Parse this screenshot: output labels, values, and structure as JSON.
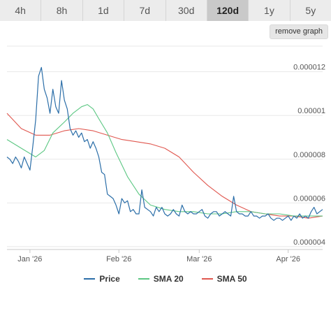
{
  "tabs": [
    {
      "label": "4h",
      "active": false
    },
    {
      "label": "8h",
      "active": false
    },
    {
      "label": "1d",
      "active": false
    },
    {
      "label": "7d",
      "active": false
    },
    {
      "label": "30d",
      "active": false
    },
    {
      "label": "120d",
      "active": true
    },
    {
      "label": "1y",
      "active": false
    },
    {
      "label": "5y",
      "active": false
    }
  ],
  "toolbar": {
    "remove_graph_label": "remove graph"
  },
  "colors": {
    "price": "#2b6ea8",
    "sma20": "#5cc783",
    "sma50": "#e0574f",
    "grid": "#e8e8e8"
  },
  "chart_data": {
    "type": "line",
    "title": "",
    "xlabel": "",
    "ylabel": "",
    "x_ticks": [
      {
        "label": "Jan '26",
        "day": 8
      },
      {
        "label": "Feb '26",
        "day": 39
      },
      {
        "label": "Mar '26",
        "day": 67
      },
      {
        "label": "Apr '26",
        "day": 98
      }
    ],
    "x_range": [
      0,
      110
    ],
    "y_ticks": [
      4e-06,
      6e-06,
      8e-06,
      1e-05,
      1.2e-05
    ],
    "y_tick_labels": [
      "0.000004",
      "0.000006",
      "0.000008",
      "0.00001",
      "0.000012"
    ],
    "ylim": [
      3.9e-06,
      1.33e-05
    ],
    "grid": true,
    "legend_position": "bottom",
    "series": [
      {
        "name": "Price",
        "color_key": "price",
        "x": [
          0,
          1,
          2,
          3,
          4,
          5,
          6,
          7,
          8,
          9,
          10,
          11,
          12,
          13,
          14,
          15,
          16,
          17,
          18,
          19,
          20,
          21,
          22,
          23,
          24,
          25,
          26,
          27,
          28,
          29,
          30,
          31,
          32,
          33,
          34,
          35,
          36,
          37,
          38,
          39,
          40,
          41,
          42,
          43,
          44,
          45,
          46,
          47,
          48,
          49,
          50,
          51,
          52,
          53,
          54,
          55,
          56,
          57,
          58,
          59,
          60,
          61,
          62,
          63,
          64,
          65,
          66,
          67,
          68,
          69,
          70,
          71,
          72,
          73,
          74,
          75,
          76,
          77,
          78,
          79,
          80,
          81,
          82,
          83,
          84,
          85,
          86,
          87,
          88,
          89,
          90,
          91,
          92,
          93,
          94,
          95,
          96,
          97,
          98,
          99,
          100,
          101,
          102,
          103,
          104,
          105,
          106,
          107,
          108,
          109,
          110
        ],
        "values": [
          8.1e-06,
          8e-06,
          7.8e-06,
          8.1e-06,
          7.9e-06,
          7.6e-06,
          8.1e-06,
          7.8e-06,
          7.5e-06,
          8.6e-06,
          9.8e-06,
          1.18e-05,
          1.22e-05,
          1.12e-05,
          1.08e-05,
          1.01e-05,
          1.12e-05,
          1.04e-05,
          1.01e-05,
          1.16e-05,
          1.07e-05,
          1.03e-05,
          9.4e-06,
          9.1e-06,
          9.3e-06,
          9e-06,
          9.2e-06,
          8.8e-06,
          8.9e-06,
          8.5e-06,
          8.8e-06,
          8.5e-06,
          8.1e-06,
          7.4e-06,
          7.3e-06,
          6.4e-06,
          6.3e-06,
          6.2e-06,
          5.9e-06,
          5.5e-06,
          6.2e-06,
          6e-06,
          6.1e-06,
          5.6e-06,
          5.7e-06,
          5.5e-06,
          5.5e-06,
          6.6e-06,
          5.8e-06,
          5.7e-06,
          5.6e-06,
          5.4e-06,
          5.8e-06,
          5.6e-06,
          5.8e-06,
          5.5e-06,
          5.4e-06,
          5.5e-06,
          5.7e-06,
          5.5e-06,
          5.4e-06,
          5.9e-06,
          5.6e-06,
          5.5e-06,
          5.6e-06,
          5.5e-06,
          5.5e-06,
          5.6e-06,
          5.7e-06,
          5.4e-06,
          5.3e-06,
          5.5e-06,
          5.6e-06,
          5.6e-06,
          5.4e-06,
          5.5e-06,
          5.6e-06,
          5.5e-06,
          5.4e-06,
          6.3e-06,
          5.6e-06,
          5.5e-06,
          5.5e-06,
          5.4e-06,
          5.4e-06,
          5.6e-06,
          5.4e-06,
          5.4e-06,
          5.3e-06,
          5.4e-06,
          5.4e-06,
          5.5e-06,
          5.3e-06,
          5.2e-06,
          5.3e-06,
          5.3e-06,
          5.2e-06,
          5.3e-06,
          5.4e-06,
          5.2e-06,
          5.4e-06,
          5.3e-06,
          5.5e-06,
          5.3e-06,
          5.4e-06,
          5.3e-06,
          5.6e-06,
          5.8e-06,
          5.5e-06,
          5.6e-06,
          5.7e-06
        ]
      },
      {
        "name": "SMA 20",
        "color_key": "sma20",
        "x": [
          0,
          5,
          10,
          13,
          16,
          20,
          23,
          26,
          28,
          30,
          32,
          35,
          38,
          42,
          46,
          50,
          55,
          60,
          65,
          70,
          75,
          80,
          85,
          90,
          95,
          100,
          105,
          110
        ],
        "values": [
          8.9e-06,
          8.5e-06,
          8.1e-06,
          8.4e-06,
          9.2e-06,
          9.7e-06,
          1.01e-05,
          1.04e-05,
          1.05e-05,
          1.03e-05,
          9.85e-06,
          9.2e-06,
          8.3e-06,
          7.2e-06,
          6.4e-06,
          5.9e-06,
          5.7e-06,
          5.6e-06,
          5.6e-06,
          5.5e-06,
          5.5e-06,
          5.6e-06,
          5.6e-06,
          5.5e-06,
          5.5e-06,
          5.4e-06,
          5.4e-06,
          5.4e-06
        ]
      },
      {
        "name": "SMA 50",
        "color_key": "sma50",
        "x": [
          0,
          5,
          10,
          15,
          20,
          25,
          30,
          35,
          40,
          45,
          50,
          55,
          60,
          65,
          70,
          75,
          80,
          85,
          90,
          95,
          100,
          105,
          110
        ],
        "values": [
          1.01e-05,
          9.4e-06,
          9.1e-06,
          9.1e-06,
          9.3e-06,
          9.4e-06,
          9.3e-06,
          9.1e-06,
          8.9e-06,
          8.8e-06,
          8.7e-06,
          8.5e-06,
          8.1e-06,
          7.4e-06,
          6.8e-06,
          6.3e-06,
          5.9e-06,
          5.6e-06,
          5.5e-06,
          5.4e-06,
          5.4e-06,
          5.3e-06,
          5.4e-06
        ]
      }
    ]
  }
}
